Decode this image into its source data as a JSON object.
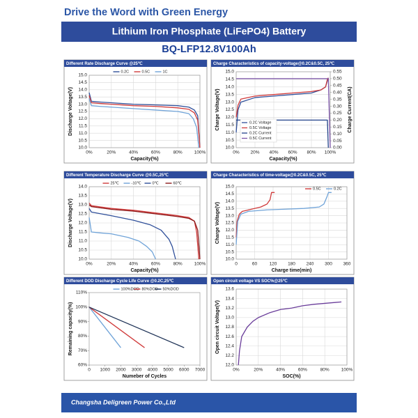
{
  "header": {
    "tagline": "Drive the Word with Green Energy",
    "title": "Lithium Iron Phosphate (LiFePO4) Battery",
    "model": "BQ-LFP12.8V100Ah"
  },
  "footer": {
    "company": "Changsha Deligreen Power Co.,Ltd"
  },
  "chart_data": [
    {
      "type": "line",
      "title": "Different Rate Discharge Curve @25℃",
      "xlabel": "Capacity(%)",
      "ylabel": "Discharge Voltage(V)",
      "xlim": [
        0,
        100
      ],
      "xticks": [
        {
          "value": 0,
          "label": "0%"
        },
        {
          "value": 20,
          "label": "20%"
        },
        {
          "value": 40,
          "label": "40%"
        },
        {
          "value": 60,
          "label": "60%"
        },
        {
          "value": 80,
          "label": "80%"
        },
        {
          "value": 100,
          "label": "100%"
        }
      ],
      "ylim": [
        10,
        15
      ],
      "yticks": [
        {
          "value": 10,
          "label": "10.0"
        },
        10.5,
        {
          "value": 11,
          "label": "11.0"
        },
        11.5,
        {
          "value": 12,
          "label": "12.0"
        },
        12.5,
        {
          "value": 13,
          "label": "13.0"
        },
        13.5,
        {
          "value": 14,
          "label": "14.0"
        },
        14.5,
        {
          "value": 15,
          "label": "15.0"
        }
      ],
      "grid": true,
      "legend": "top",
      "series": [
        {
          "name": "0.2C",
          "color": "#2f4f9a",
          "x": [
            0,
            2,
            10,
            20,
            40,
            60,
            80,
            90,
            95,
            98,
            100
          ],
          "values": [
            13.8,
            13.2,
            13.15,
            13.1,
            13.0,
            12.95,
            12.9,
            12.8,
            12.6,
            12.2,
            10.0
          ]
        },
        {
          "name": "0.5C",
          "color": "#d03a3a",
          "x": [
            0,
            2,
            10,
            20,
            40,
            60,
            80,
            90,
            95,
            98,
            100
          ],
          "values": [
            13.6,
            13.1,
            13.05,
            13.0,
            12.9,
            12.85,
            12.75,
            12.65,
            12.4,
            11.9,
            10.0
          ]
        },
        {
          "name": "1C",
          "color": "#6fa3d8",
          "x": [
            0,
            2,
            10,
            20,
            40,
            60,
            80,
            90,
            94,
            97,
            99
          ],
          "values": [
            13.4,
            12.9,
            12.85,
            12.8,
            12.7,
            12.6,
            12.5,
            12.35,
            12.0,
            11.4,
            10.0
          ]
        }
      ]
    },
    {
      "type": "line",
      "title": "Charge  Characteristics of capacity-voltage@0.2C&0.5C, 25℃",
      "xlabel": "Capacity(%)",
      "ylabel": "Charge Voltage(V)",
      "y2label": "Charge Current(CA)",
      "xlim": [
        0,
        100
      ],
      "xticks": [
        {
          "value": 0,
          "label": "0%"
        },
        {
          "value": 20,
          "label": "20%"
        },
        {
          "value": 40,
          "label": "40%"
        },
        {
          "value": 60,
          "label": "60%"
        },
        {
          "value": 80,
          "label": "80%"
        },
        {
          "value": 100,
          "label": "100%"
        }
      ],
      "ylim": [
        10,
        15
      ],
      "yticks": [
        {
          "value": 10,
          "label": "10.0"
        },
        10.5,
        {
          "value": 11,
          "label": "11.0"
        },
        11.5,
        {
          "value": 12,
          "label": "12.0"
        },
        12.5,
        {
          "value": 13,
          "label": "13.0"
        },
        13.5,
        {
          "value": 14,
          "label": "14.0"
        },
        14.5,
        {
          "value": 15,
          "label": "15.0"
        }
      ],
      "y2lim": [
        0,
        0.55
      ],
      "y2ticks": [
        {
          "value": 0,
          "label": "0.00"
        },
        0.05,
        {
          "value": 0.1,
          "label": "0.10"
        },
        0.15,
        {
          "value": 0.2,
          "label": "0.20"
        },
        0.25,
        {
          "value": 0.3,
          "label": "0.30"
        },
        0.35,
        {
          "value": 0.4,
          "label": "0.40"
        },
        0.45,
        {
          "value": 0.5,
          "label": "0.50"
        },
        0.55
      ],
      "grid": true,
      "legend": "lower left",
      "series": [
        {
          "name": "0.2C Voltage",
          "color": "#2f4f9a",
          "x": [
            0,
            2,
            5,
            20,
            40,
            60,
            80,
            90,
            95,
            97,
            98
          ],
          "values": [
            11.0,
            12.5,
            13.0,
            13.3,
            13.4,
            13.5,
            13.6,
            13.8,
            14.0,
            14.4,
            14.6
          ]
        },
        {
          "name": "0.5C Voltage",
          "color": "#d03a3a",
          "x": [
            0,
            2,
            5,
            20,
            40,
            60,
            80,
            90,
            95,
            97,
            98
          ],
          "values": [
            12.0,
            12.8,
            13.2,
            13.4,
            13.5,
            13.6,
            13.7,
            13.8,
            14.0,
            14.5,
            14.6
          ]
        },
        {
          "name": "0.2C Current",
          "color": "#1f3f88",
          "axis": "y2",
          "x": [
            0,
            97,
            98
          ],
          "values": [
            0.2,
            0.2,
            0.0
          ]
        },
        {
          "name": "0.5C Current",
          "color": "#7b52a8",
          "axis": "y2",
          "x": [
            0,
            98,
            100
          ],
          "values": [
            0.5,
            0.5,
            0.0
          ]
        }
      ]
    },
    {
      "type": "line",
      "title": "Different Temperature Discharge Curve @0.5C,25℃",
      "xlabel": "Capacity(%)",
      "ylabel": "Discharge Voltage(V)",
      "xlim": [
        0,
        100
      ],
      "xticks": [
        {
          "value": 0,
          "label": "0%"
        },
        {
          "value": 20,
          "label": "20%"
        },
        {
          "value": 40,
          "label": "40%"
        },
        {
          "value": 60,
          "label": "60%"
        },
        {
          "value": 80,
          "label": "80%"
        },
        {
          "value": 100,
          "label": "100%"
        }
      ],
      "ylim": [
        10,
        14
      ],
      "yticks": [
        {
          "value": 10,
          "label": "10.0"
        },
        10.5,
        {
          "value": 11,
          "label": "11.0"
        },
        11.5,
        {
          "value": 12,
          "label": "12.0"
        },
        12.5,
        {
          "value": 13,
          "label": "13.0"
        },
        13.5,
        {
          "value": 14,
          "label": "14.0"
        }
      ],
      "grid": true,
      "legend": "top",
      "series": [
        {
          "name": "25℃",
          "color": "#d03a3a",
          "x": [
            0,
            2,
            20,
            40,
            60,
            80,
            90,
            95,
            97,
            99
          ],
          "values": [
            13.1,
            12.95,
            12.8,
            12.7,
            12.55,
            12.4,
            12.3,
            12.1,
            11.5,
            10.0
          ]
        },
        {
          "name": "-10℃",
          "color": "#6fa3d8",
          "x": [
            0,
            2,
            10,
            20,
            35,
            45,
            52,
            57,
            60
          ],
          "values": [
            12.3,
            11.5,
            11.45,
            11.4,
            11.2,
            11.0,
            10.7,
            10.4,
            10.0
          ]
        },
        {
          "name": "0℃",
          "color": "#2f4f9a",
          "x": [
            0,
            2,
            20,
            40,
            55,
            65,
            72,
            75,
            78
          ],
          "values": [
            12.8,
            12.6,
            12.4,
            12.15,
            11.9,
            11.6,
            11.1,
            10.7,
            10.0
          ]
        },
        {
          "name": "60℃",
          "color": "#8b1a1a",
          "x": [
            0,
            2,
            20,
            40,
            60,
            80,
            90,
            95,
            98,
            100
          ],
          "values": [
            13.0,
            12.9,
            12.75,
            12.65,
            12.5,
            12.35,
            12.25,
            12.1,
            11.6,
            10.0
          ]
        }
      ]
    },
    {
      "type": "line",
      "title": "Charge  Characteristics of time-voltage@0.2C&0.5C, 25℃",
      "xlabel": "Charge time(min)",
      "ylabel": "Charge Voltage(V)",
      "xlim": [
        0,
        360
      ],
      "xticks": [
        0,
        60,
        120,
        180,
        240,
        300,
        360
      ],
      "ylim": [
        10,
        15
      ],
      "yticks": [
        {
          "value": 10,
          "label": "10.0"
        },
        10.5,
        {
          "value": 11,
          "label": "11.0"
        },
        11.5,
        {
          "value": 12,
          "label": "12.0"
        },
        12.5,
        {
          "value": 13,
          "label": "13.0"
        },
        13.5,
        {
          "value": 14,
          "label": "14.0"
        },
        14.5,
        {
          "value": 15,
          "label": "15.0"
        }
      ],
      "grid": true,
      "legend": "top right",
      "series": [
        {
          "name": "0.5C",
          "color": "#d03a3a",
          "x": [
            0,
            3,
            10,
            20,
            50,
            80,
            100,
            110,
            115,
            125
          ],
          "values": [
            11.5,
            12.6,
            13.1,
            13.3,
            13.45,
            13.6,
            13.8,
            14.1,
            14.6,
            14.6
          ]
        },
        {
          "name": "0.2C",
          "color": "#6fa3d8",
          "x": [
            0,
            5,
            15,
            40,
            100,
            160,
            220,
            270,
            285,
            295,
            300,
            310
          ],
          "values": [
            11.0,
            12.6,
            13.1,
            13.3,
            13.4,
            13.45,
            13.5,
            13.6,
            13.8,
            14.3,
            14.6,
            14.6
          ]
        }
      ]
    },
    {
      "type": "line",
      "title": "Different DOD Discharge Cycle Life Curve @0.2C,25℃",
      "xlabel": "Numeber of Cycles",
      "ylabel": "Remaining capacity(%)",
      "xlim": [
        0,
        7000
      ],
      "xticks": [
        0,
        1000,
        2000,
        3000,
        4000,
        5000,
        6000,
        7000
      ],
      "ylim": [
        60,
        110
      ],
      "yticks": [
        {
          "value": 60,
          "label": "60%"
        },
        {
          "value": 70,
          "label": "70%"
        },
        {
          "value": 80,
          "label": "80%"
        },
        {
          "value": 90,
          "label": "90%"
        },
        {
          "value": 100,
          "label": "100%"
        },
        {
          "value": 110,
          "label": "110%"
        }
      ],
      "grid": false,
      "legend": "top",
      "series": [
        {
          "name": "100%DOD",
          "color": "#6fa3d8",
          "x": [
            0,
            2000
          ],
          "values": [
            100,
            72
          ]
        },
        {
          "name": "80%DOD",
          "color": "#d03a3a",
          "x": [
            0,
            3500
          ],
          "values": [
            100,
            72
          ]
        },
        {
          "name": "50%DOD",
          "color": "#1f3357",
          "x": [
            0,
            6000
          ],
          "values": [
            100,
            72
          ]
        }
      ]
    },
    {
      "type": "line",
      "title": "Open circuit voltage VS SOC%@25℃",
      "xlabel": "SOC(%)",
      "ylabel": "Open circuit Voltage(V)",
      "xlim": [
        0,
        100
      ],
      "xticks": [
        {
          "value": 0,
          "label": "0%"
        },
        {
          "value": 20,
          "label": "20%"
        },
        {
          "value": 40,
          "label": "40%"
        },
        {
          "value": 60,
          "label": "60%"
        },
        {
          "value": 80,
          "label": "80%"
        },
        {
          "value": 100,
          "label": "100%"
        }
      ],
      "ylim": [
        12,
        13.6
      ],
      "yticks": [
        {
          "value": 12,
          "label": "12.0"
        },
        12.2,
        12.4,
        12.6,
        12.8,
        {
          "value": 13,
          "label": "13.0"
        },
        13.2,
        13.4,
        13.6
      ],
      "grid": true,
      "series": [
        {
          "color": "#6a3d9a",
          "x": [
            2,
            3,
            5,
            10,
            15,
            20,
            30,
            40,
            50,
            60,
            70,
            80,
            90,
            95
          ],
          "values": [
            12.0,
            12.3,
            12.6,
            12.8,
            12.92,
            13.0,
            13.1,
            13.17,
            13.2,
            13.25,
            13.28,
            13.3,
            13.32,
            13.33
          ]
        }
      ]
    }
  ]
}
